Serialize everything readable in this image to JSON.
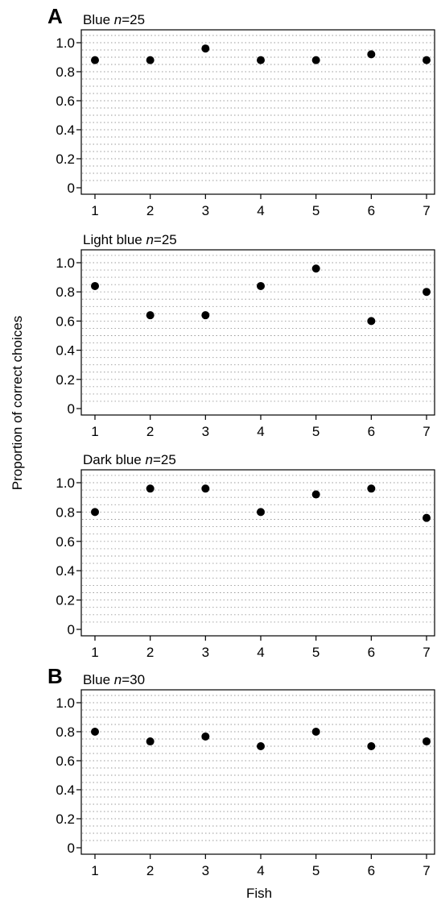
{
  "figure": {
    "ylabel": "Proportion of correct choices",
    "xlabel": "Fish"
  },
  "chart_data": [
    {
      "type": "scatter",
      "panel_letter": "A",
      "title_prefix": "Blue ",
      "title_n": "n",
      "title_suffix": "=25",
      "x": [
        1,
        2,
        3,
        4,
        5,
        6,
        7
      ],
      "y": [
        0.88,
        0.88,
        0.96,
        0.88,
        0.88,
        0.92,
        0.88
      ],
      "ylim": [
        0,
        1.1
      ],
      "y_ticks": [
        0,
        0.2,
        0.4,
        0.6,
        0.8,
        1.0
      ],
      "y_tick_labels": [
        "0",
        "0.2",
        "0.4",
        "0.6",
        "0.8",
        "1.0"
      ],
      "x_ticks": [
        1,
        2,
        3,
        4,
        5,
        6,
        7
      ],
      "x_tick_labels": [
        "1",
        "2",
        "3",
        "4",
        "5",
        "6",
        "7"
      ],
      "grid": true,
      "marker_color": "#000000"
    },
    {
      "type": "scatter",
      "panel_letter": "",
      "title_prefix": "Light blue ",
      "title_n": "n",
      "title_suffix": "=25",
      "x": [
        1,
        2,
        3,
        4,
        5,
        6,
        7
      ],
      "y": [
        0.84,
        0.64,
        0.64,
        0.84,
        0.96,
        0.6,
        0.8
      ],
      "ylim": [
        0,
        1.1
      ],
      "y_ticks": [
        0,
        0.2,
        0.4,
        0.6,
        0.8,
        1.0
      ],
      "y_tick_labels": [
        "0",
        "0.2",
        "0.4",
        "0.6",
        "0.8",
        "1.0"
      ],
      "x_ticks": [
        1,
        2,
        3,
        4,
        5,
        6,
        7
      ],
      "x_tick_labels": [
        "1",
        "2",
        "3",
        "4",
        "5",
        "6",
        "7"
      ],
      "grid": true,
      "marker_color": "#000000"
    },
    {
      "type": "scatter",
      "panel_letter": "",
      "title_prefix": "Dark blue ",
      "title_n": "n",
      "title_suffix": "=25",
      "x": [
        1,
        2,
        3,
        4,
        5,
        6,
        7
      ],
      "y": [
        0.8,
        0.96,
        0.96,
        0.8,
        0.92,
        0.96,
        0.76
      ],
      "ylim": [
        0,
        1.1
      ],
      "y_ticks": [
        0,
        0.2,
        0.4,
        0.6,
        0.8,
        1.0
      ],
      "y_tick_labels": [
        "0",
        "0.2",
        "0.4",
        "0.6",
        "0.8",
        "1.0"
      ],
      "x_ticks": [
        1,
        2,
        3,
        4,
        5,
        6,
        7
      ],
      "x_tick_labels": [
        "1",
        "2",
        "3",
        "4",
        "5",
        "6",
        "7"
      ],
      "grid": true,
      "marker_color": "#000000"
    },
    {
      "type": "scatter",
      "panel_letter": "B",
      "title_prefix": "Blue ",
      "title_n": "n",
      "title_suffix": "=30",
      "x": [
        1,
        2,
        3,
        4,
        5,
        6,
        7
      ],
      "y": [
        0.8,
        0.733,
        0.767,
        0.7,
        0.8,
        0.7,
        0.733
      ],
      "ylim": [
        0,
        1.1
      ],
      "y_ticks": [
        0,
        0.2,
        0.4,
        0.6,
        0.8,
        1.0
      ],
      "y_tick_labels": [
        "0",
        "0.2",
        "0.4",
        "0.6",
        "0.8",
        "1.0"
      ],
      "x_ticks": [
        1,
        2,
        3,
        4,
        5,
        6,
        7
      ],
      "x_tick_labels": [
        "1",
        "2",
        "3",
        "4",
        "5",
        "6",
        "7"
      ],
      "grid": true,
      "marker_color": "#000000"
    }
  ]
}
